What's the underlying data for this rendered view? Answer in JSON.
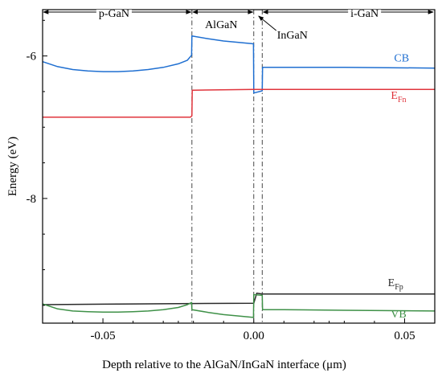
{
  "chart_data": {
    "type": "line",
    "xlabel": "Depth relative to the AlGaN/InGaN interface (μm)",
    "ylabel": "Energy (eV)",
    "xlim": [
      -0.07,
      0.06
    ],
    "ylim": [
      -9.75,
      -5.35
    ],
    "x_ticks": [
      -0.05,
      0.0,
      0.05
    ],
    "x_tick_labels": [
      "-0.05",
      "0.00",
      "0.05"
    ],
    "y_ticks": [
      -6,
      -8
    ],
    "y_tick_labels": [
      "-6",
      "-8"
    ],
    "grid": false,
    "boundaries": [
      -0.0205,
      0.0,
      0.0028
    ],
    "regions": [
      {
        "label": "p-GaN",
        "from": -0.07,
        "to": -0.0205
      },
      {
        "label": "AlGaN",
        "from": -0.0205,
        "to": 0.0
      },
      {
        "label": "InGaN",
        "from": 0.0,
        "to": 0.0028
      },
      {
        "label": "i-GaN",
        "from": 0.0028,
        "to": 0.06
      }
    ],
    "series": [
      {
        "name": "CB",
        "color": "#1f6fd1",
        "points": [
          [
            -0.07,
            -6.08
          ],
          [
            -0.065,
            -6.15
          ],
          [
            -0.06,
            -6.19
          ],
          [
            -0.055,
            -6.21
          ],
          [
            -0.05,
            -6.22
          ],
          [
            -0.045,
            -6.22
          ],
          [
            -0.04,
            -6.21
          ],
          [
            -0.035,
            -6.19
          ],
          [
            -0.03,
            -6.16
          ],
          [
            -0.025,
            -6.11
          ],
          [
            -0.022,
            -6.06
          ],
          [
            -0.0206,
            -5.99
          ],
          [
            -0.0205,
            -5.72
          ],
          [
            -0.015,
            -5.76
          ],
          [
            -0.01,
            -5.79
          ],
          [
            -0.005,
            -5.81
          ],
          [
            -0.0001,
            -5.83
          ],
          [
            0.0,
            -6.52
          ],
          [
            0.0028,
            -6.49
          ],
          [
            0.0029,
            -6.16
          ],
          [
            0.01,
            -6.16
          ],
          [
            0.03,
            -6.16
          ],
          [
            0.06,
            -6.17
          ]
        ]
      },
      {
        "name": "E<sub>Fn</sub>",
        "label_main": "E",
        "label_sub": "Fn",
        "color": "#e0343c",
        "points": [
          [
            -0.07,
            -6.86
          ],
          [
            -0.021,
            -6.86
          ],
          [
            -0.0205,
            -6.84
          ],
          [
            -0.0204,
            -6.48
          ],
          [
            0.0,
            -6.47
          ],
          [
            0.0028,
            -6.47
          ],
          [
            0.06,
            -6.47
          ]
        ]
      },
      {
        "name": "E<sub>Fp</sub>",
        "label_main": "E",
        "label_sub": "Fp",
        "color": "#2a2a2a",
        "points": [
          [
            -0.07,
            -9.49
          ],
          [
            -0.04,
            -9.48
          ],
          [
            -0.0205,
            -9.475
          ],
          [
            0.0,
            -9.47
          ],
          [
            0.001,
            -9.33
          ],
          [
            0.0028,
            -9.34
          ],
          [
            0.06,
            -9.34
          ]
        ]
      },
      {
        "name": "VB",
        "color": "#3f9148",
        "points": [
          [
            -0.07,
            -9.48
          ],
          [
            -0.065,
            -9.55
          ],
          [
            -0.06,
            -9.58
          ],
          [
            -0.055,
            -9.59
          ],
          [
            -0.05,
            -9.595
          ],
          [
            -0.045,
            -9.595
          ],
          [
            -0.04,
            -9.59
          ],
          [
            -0.035,
            -9.58
          ],
          [
            -0.03,
            -9.56
          ],
          [
            -0.025,
            -9.53
          ],
          [
            -0.022,
            -9.49
          ],
          [
            -0.0206,
            -9.46
          ],
          [
            -0.0205,
            -9.56
          ],
          [
            -0.015,
            -9.6
          ],
          [
            -0.01,
            -9.63
          ],
          [
            -0.005,
            -9.65
          ],
          [
            -0.0001,
            -9.67
          ],
          [
            0.0,
            -9.35
          ],
          [
            0.0028,
            -9.36
          ],
          [
            0.0029,
            -9.56
          ],
          [
            0.01,
            -9.56
          ],
          [
            0.03,
            -9.57
          ],
          [
            0.06,
            -9.58
          ]
        ]
      }
    ],
    "series_labels": [
      {
        "series": "CB",
        "text": "CB",
        "x": 0.049,
        "y": -6.08,
        "color": "#1f6fd1"
      },
      {
        "series": "EFn",
        "main": "E",
        "sub": "Fn",
        "x": 0.048,
        "y": -6.6,
        "color": "#e0343c"
      },
      {
        "series": "EFp",
        "main": "E",
        "sub": "Fp",
        "x": 0.047,
        "y": -9.23,
        "color": "#2a2a2a"
      },
      {
        "series": "VB",
        "text": "VB",
        "x": 0.048,
        "y": -9.67,
        "color": "#3f9148"
      }
    ]
  }
}
